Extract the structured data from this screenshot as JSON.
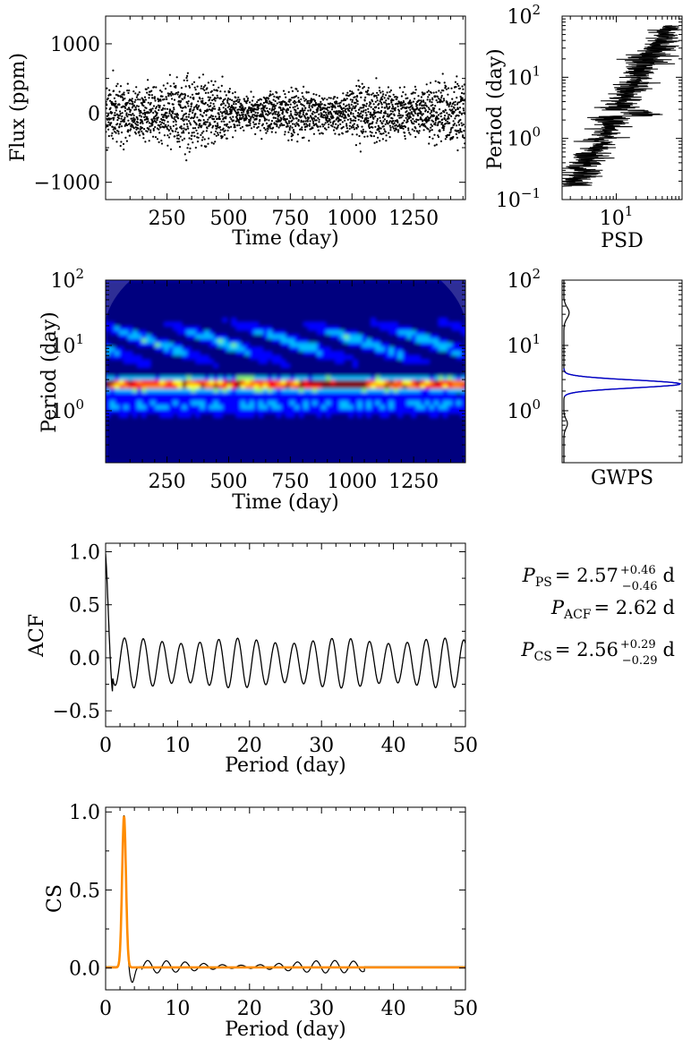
{
  "chart_data": [
    {
      "id": "lightcurve",
      "type": "scatter",
      "xlabel": "Time (day)",
      "ylabel": "Flux (ppm)",
      "xlim": [
        1,
        1460
      ],
      "ylim": [
        -1250,
        1400
      ],
      "xticks": [
        250,
        500,
        750,
        1000,
        1250
      ],
      "xtick_labels": [
        "250",
        "500",
        "750",
        "1000",
        "1250"
      ],
      "yticks": [
        -1000,
        0,
        1000
      ],
      "ytick_labels": [
        "−1000",
        "0",
        "1000"
      ],
      "color": "#000000"
    },
    {
      "id": "psd",
      "type": "line",
      "xlabel": "PSD",
      "ylabel": "Period (day)",
      "xscale": "log",
      "yscale": "log",
      "xlim": [
        1.5,
        100
      ],
      "ylim": [
        0.1,
        100
      ],
      "xticks": [
        10
      ],
      "xtick_labels": [
        "10"
      ],
      "xtick_exponents": [
        "1"
      ],
      "yticks": [
        0.1,
        1,
        10,
        100
      ],
      "ytick_labels": [
        "10",
        "10",
        "10",
        "10"
      ],
      "ytick_exponents": [
        "−1",
        "0",
        "1",
        "2"
      ],
      "color": "#000000"
    },
    {
      "id": "wavelet",
      "type": "heatmap",
      "xlabel": "Time (day)",
      "ylabel": "Period (day)",
      "yscale": "log",
      "xlim": [
        1,
        1460
      ],
      "ylim": [
        0.16,
        100
      ],
      "xticks": [
        250,
        500,
        750,
        1000,
        1250
      ],
      "xtick_labels": [
        "250",
        "500",
        "750",
        "1000",
        "1250"
      ],
      "yticks": [
        1,
        10,
        100
      ],
      "ytick_labels": [
        "10",
        "10",
        "10"
      ],
      "ytick_exponents": [
        "0",
        "1",
        "2"
      ],
      "peak_period": 2.6,
      "colormap": [
        "#00007f",
        "#0000ff",
        "#00bfff",
        "#7fff7f",
        "#ffff00",
        "#ff7f00",
        "#ff0000",
        "#7f0000"
      ]
    },
    {
      "id": "gwps",
      "type": "line",
      "xlabel": "GWPS",
      "yscale": "log",
      "ylim": [
        0.16,
        100
      ],
      "yticks": [
        1,
        10,
        100
      ],
      "ytick_labels": [
        "10",
        "10",
        "10"
      ],
      "ytick_exponents": [
        "0",
        "1",
        "2"
      ],
      "peak_period": 2.57,
      "series": [
        {
          "color": "#000000"
        },
        {
          "color": "#0000cc"
        }
      ]
    },
    {
      "id": "acf",
      "type": "line",
      "xlabel": "Period (day)",
      "ylabel": "ACF",
      "xlim": [
        0,
        50
      ],
      "ylim": [
        -0.65,
        1.08
      ],
      "xticks": [
        0,
        10,
        20,
        30,
        40,
        50
      ],
      "xtick_labels": [
        "0",
        "10",
        "20",
        "30",
        "40",
        "50"
      ],
      "yticks": [
        -0.5,
        0,
        0.5,
        1
      ],
      "ytick_labels": [
        "−0.5",
        "0.0",
        "0.5",
        "1.0"
      ],
      "period": 2.62,
      "color": "#000000"
    },
    {
      "id": "cs",
      "type": "line",
      "xlabel": "Period (day)",
      "ylabel": "CS",
      "xlim": [
        0,
        50
      ],
      "ylim": [
        -0.14,
        1.03
      ],
      "xticks": [
        0,
        10,
        20,
        30,
        40,
        50
      ],
      "xtick_labels": [
        "0",
        "10",
        "20",
        "30",
        "40",
        "50"
      ],
      "yticks": [
        0,
        0.5,
        1
      ],
      "ytick_labels": [
        "0.0",
        "0.5",
        "1.0"
      ],
      "peak_period": 2.56,
      "peak_value": 0.97,
      "series": [
        {
          "color": "#000000"
        },
        {
          "color": "#ff8c00"
        }
      ]
    }
  ],
  "results": {
    "ps": {
      "symbol": "P",
      "sub": "PS",
      "value": "= 2.57",
      "up": "+0.46",
      "down": "−0.46",
      "unit": "d"
    },
    "acf": {
      "symbol": "P",
      "sub": "ACF",
      "value": "= 2.62",
      "unit": "d"
    },
    "cs": {
      "symbol": "P",
      "sub": "CS",
      "value": "= 2.56",
      "up": "+0.29",
      "down": "−0.29",
      "unit": "d"
    }
  }
}
